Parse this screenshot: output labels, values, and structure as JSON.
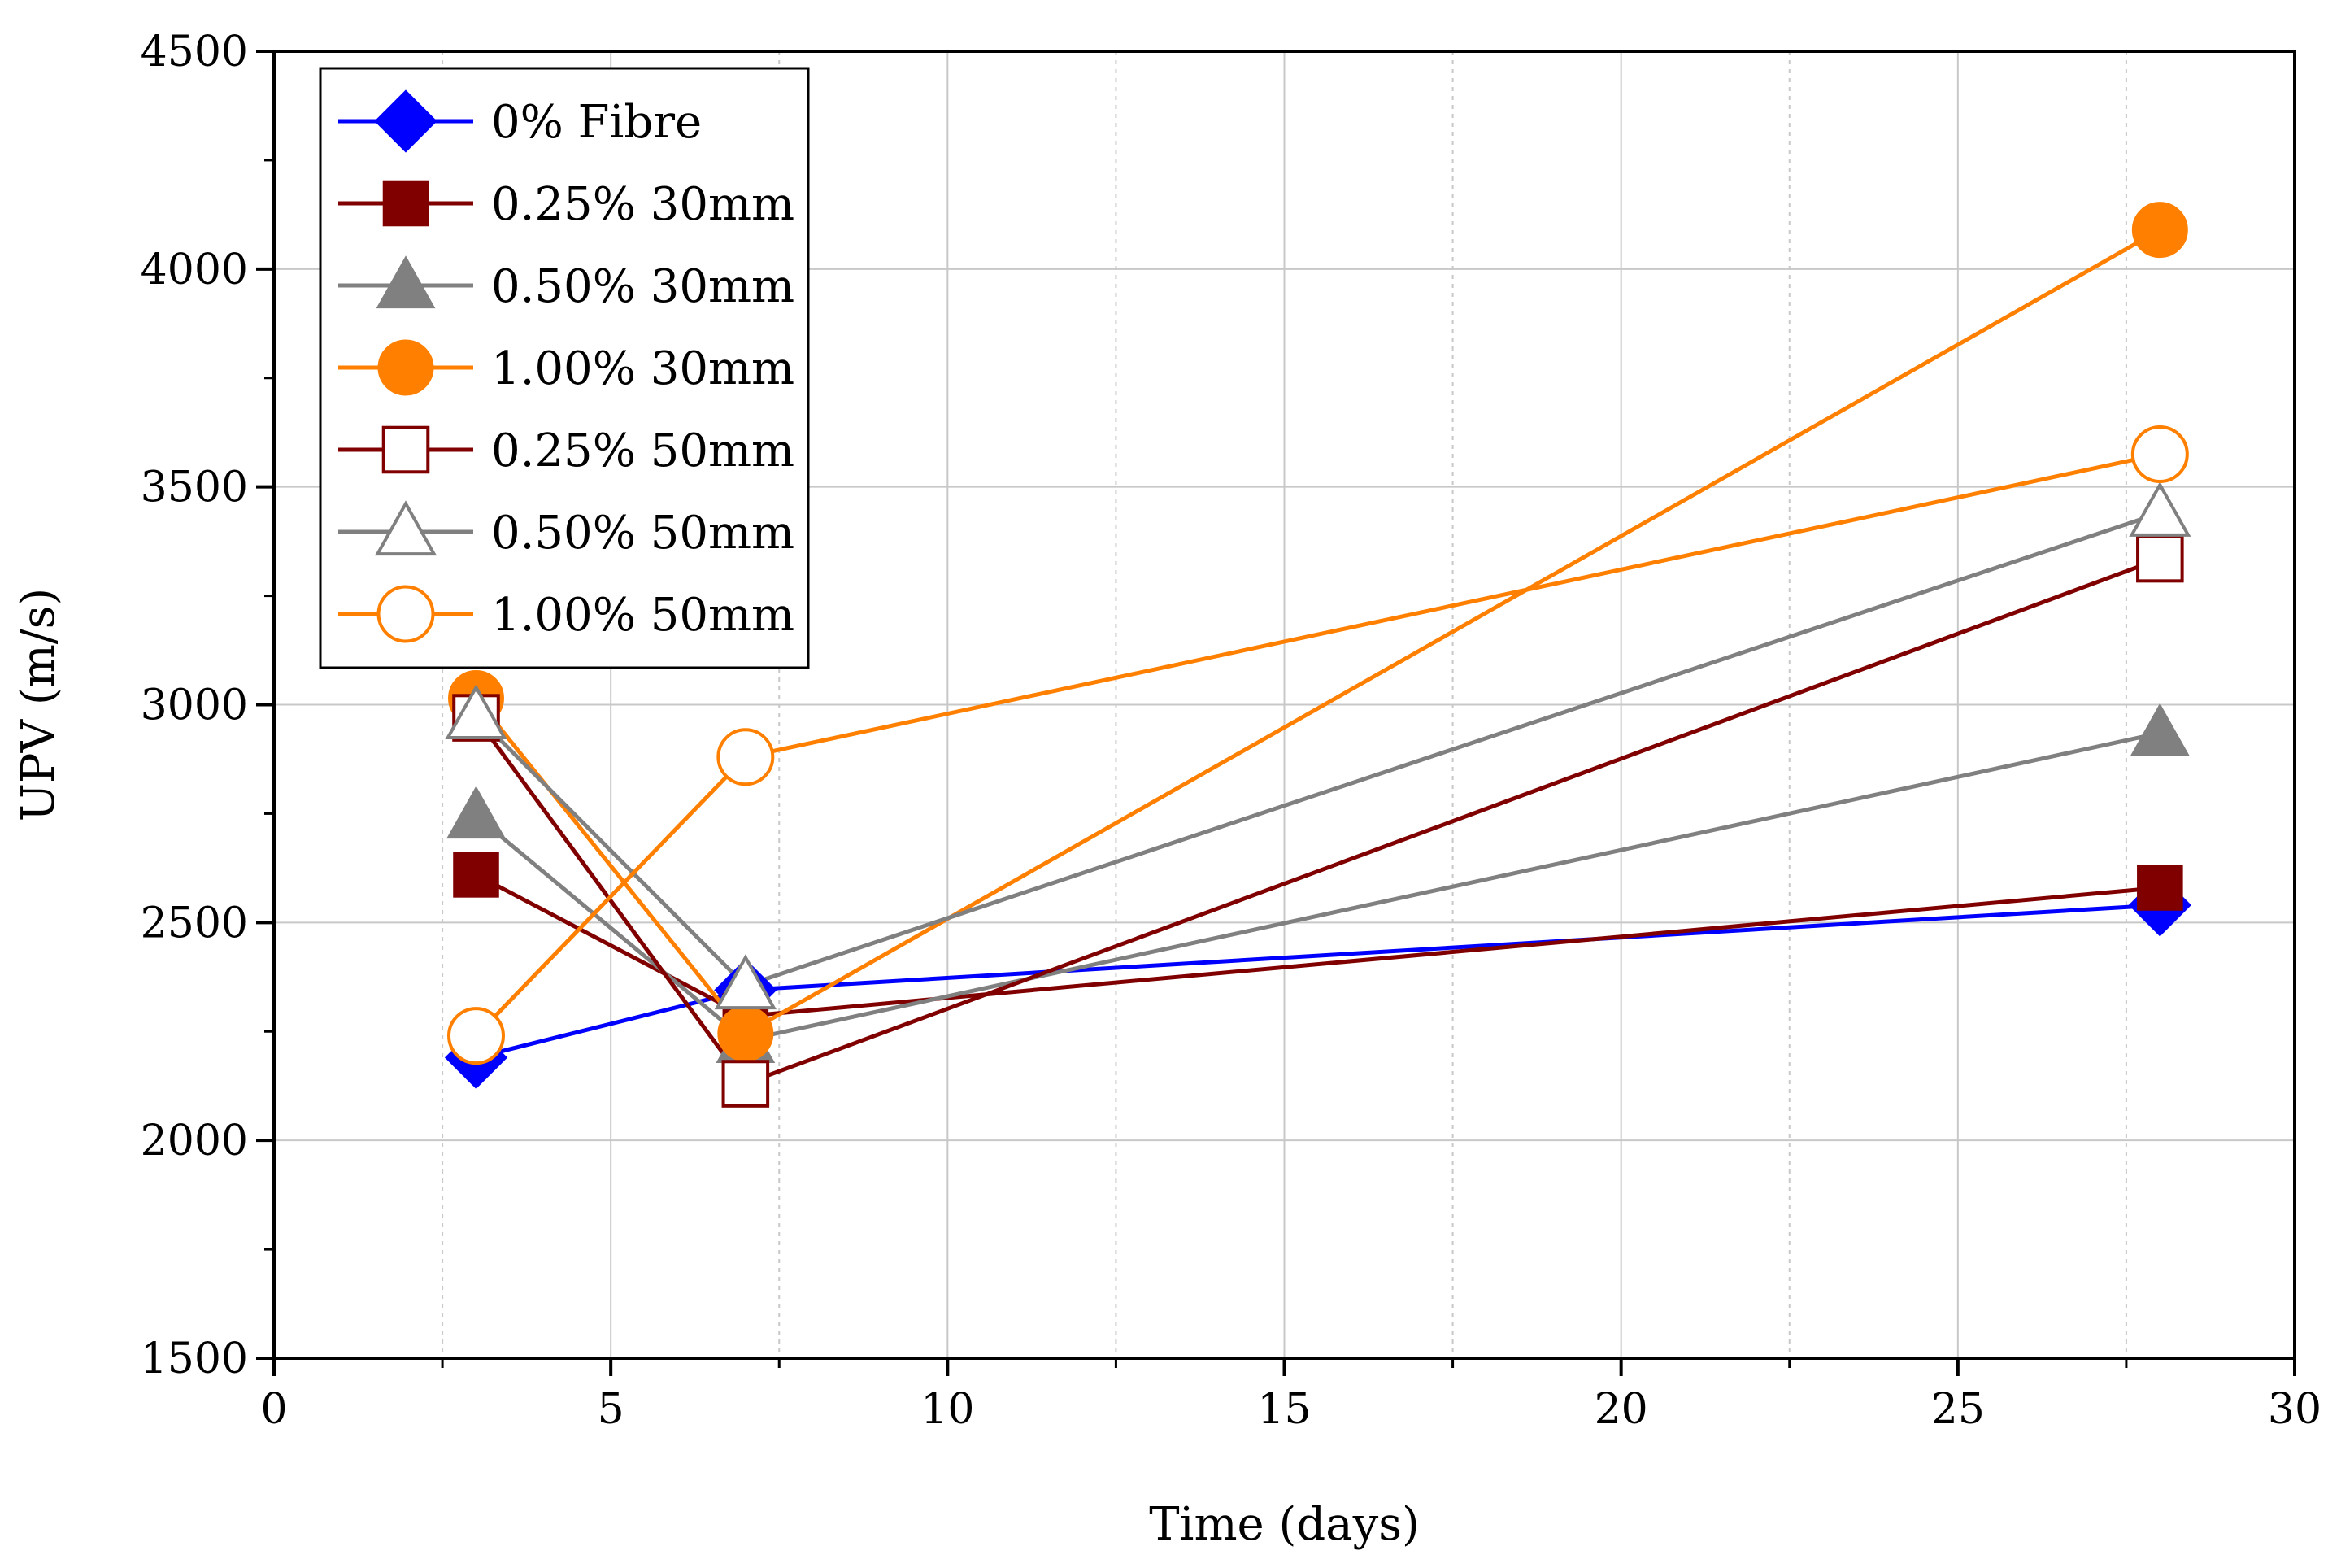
{
  "chart_data": {
    "type": "line",
    "title": "",
    "xlabel": "Time (days)",
    "ylabel": "UPV (m/s)",
    "xlim": [
      0,
      30
    ],
    "ylim": [
      1500,
      4500
    ],
    "xticks": [
      0,
      5,
      10,
      15,
      20,
      25,
      30
    ],
    "yticks": [
      1500,
      2000,
      2500,
      3000,
      3500,
      4000,
      4500
    ],
    "grid": true,
    "legend_position": "top-left",
    "series": [
      {
        "name": "0% Fibre",
        "color": "#0000ff",
        "marker": "diamond",
        "filled": true,
        "x": [
          3,
          7,
          28
        ],
        "values": [
          2190,
          2345,
          2540
        ]
      },
      {
        "name": "0.25% 30mm",
        "color": "#800000",
        "marker": "square",
        "filled": true,
        "x": [
          3,
          7,
          28
        ],
        "values": [
          2610,
          2285,
          2580
        ]
      },
      {
        "name": "0.50% 30mm",
        "color": "#808080",
        "marker": "triangle",
        "filled": true,
        "x": [
          3,
          7,
          28
        ],
        "values": [
          2745,
          2230,
          2935
        ]
      },
      {
        "name": "1.00% 30mm",
        "color": "#ff8000",
        "marker": "circle",
        "filled": true,
        "x": [
          3,
          7,
          28
        ],
        "values": [
          3015,
          2245,
          4090
        ]
      },
      {
        "name": "0.25% 50mm",
        "color": "#800000",
        "marker": "square",
        "filled": false,
        "x": [
          3,
          7,
          28
        ],
        "values": [
          2970,
          2130,
          3335
        ]
      },
      {
        "name": "0.50% 50mm",
        "color": "#808080",
        "marker": "triangle",
        "filled": false,
        "x": [
          3,
          7,
          28
        ],
        "values": [
          2975,
          2355,
          3440
        ]
      },
      {
        "name": "1.00% 50mm",
        "color": "#ff8000",
        "marker": "circle",
        "filled": false,
        "x": [
          3,
          7,
          28
        ],
        "values": [
          2240,
          2880,
          3575
        ]
      }
    ]
  }
}
